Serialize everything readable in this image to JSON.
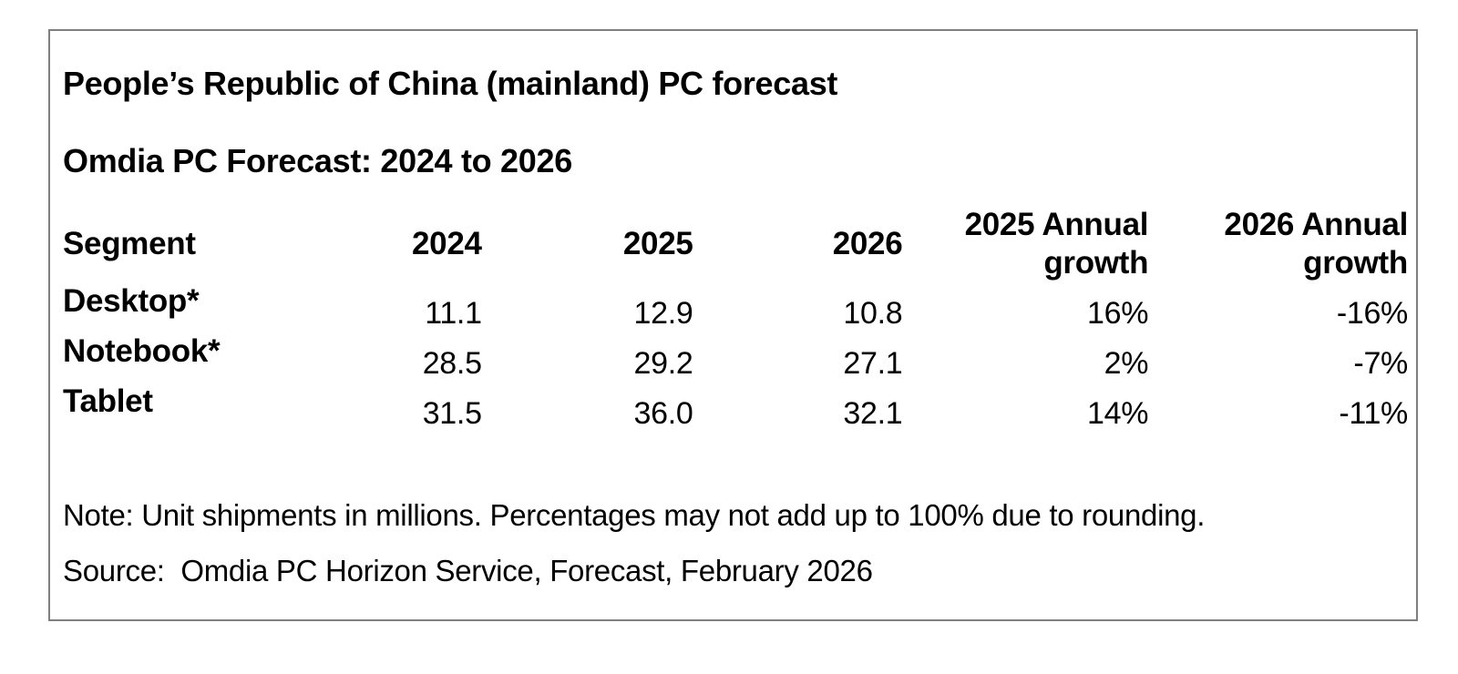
{
  "page": {
    "title": "People’s Republic of China (mainland) PC forecast",
    "subtitle": "Omdia PC Forecast: 2024 to 2026",
    "note": "Note: Unit shipments in millions. Percentages may not add up to 100% due to rounding.",
    "source": "Source:  Omdia PC Horizon Service, Forecast, February 2026"
  },
  "table": {
    "columns": [
      "Segment",
      "2024",
      "2025",
      "2026",
      "2025 Annual growth",
      "2026 Annual growth"
    ],
    "rows": [
      {
        "segment": "Desktop*",
        "values": [
          "11.1",
          "12.9",
          "10.8",
          "16%",
          "-16%"
        ]
      },
      {
        "segment": "Notebook*",
        "values": [
          "28.5",
          "29.2",
          "27.1",
          "2%",
          "-7%"
        ]
      },
      {
        "segment": "Tablet",
        "values": [
          "31.5",
          "36.0",
          "32.1",
          "14%",
          "-11%"
        ]
      }
    ]
  },
  "colors": {
    "border": "#7f7f7f",
    "text": "#000000",
    "background": "#ffffff"
  }
}
